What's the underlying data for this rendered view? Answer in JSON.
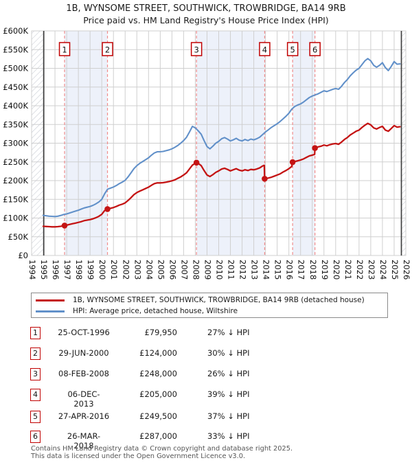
{
  "legend": {
    "items": [
      {
        "label": "1B, WYNSOME STREET, SOUTHWICK, TROWBRIDGE, BA14 9RB (detached house)",
        "color": "#c41414"
      },
      {
        "label": "HPI: Average price, detached house, Wiltshire",
        "color": "#6190c9"
      }
    ]
  },
  "sales": {
    "rows": [
      {
        "num": "1",
        "date": "25-OCT-1996",
        "price": "£79,950",
        "vs_hpi": "27% ↓ HPI"
      },
      {
        "num": "2",
        "date": "29-JUN-2000",
        "price": "£124,000",
        "vs_hpi": "30% ↓ HPI"
      },
      {
        "num": "3",
        "date": "08-FEB-2008",
        "price": "£248,000",
        "vs_hpi": "26% ↓ HPI"
      },
      {
        "num": "4",
        "date": "06-DEC-2013",
        "price": "£205,000",
        "vs_hpi": "39% ↓ HPI"
      },
      {
        "num": "5",
        "date": "27-APR-2016",
        "price": "£249,500",
        "vs_hpi": "37% ↓ HPI"
      },
      {
        "num": "6",
        "date": "26-MAR-2018",
        "price": "£287,000",
        "vs_hpi": "33% ↓ HPI"
      }
    ]
  },
  "footer": {
    "line1": "Contains HM Land Registry data © Crown copyright and database right 2025.",
    "line2": "This data is licensed under the Open Government Licence v3.0."
  },
  "chart_data": {
    "type": "line",
    "title": "1B, WYNSOME STREET, SOUTHWICK, TROWBRIDGE, BA14 9RB",
    "subtitle": "Price paid vs. HM Land Registry's House Price Index (HPI)",
    "units": "GBP thousands",
    "x_axis": {
      "start": 1994,
      "end": 2026,
      "tick_years": [
        1994,
        1995,
        1996,
        1997,
        1998,
        1999,
        2000,
        2001,
        2002,
        2003,
        2004,
        2005,
        2006,
        2007,
        2008,
        2009,
        2010,
        2011,
        2012,
        2013,
        2014,
        2015,
        2016,
        2017,
        2018,
        2019,
        2020,
        2021,
        2022,
        2023,
        2024,
        2025,
        2026
      ]
    },
    "y_axis": {
      "min": 0,
      "max": 600,
      "ticks": [
        [
          0,
          "£0"
        ],
        [
          50,
          "£50K"
        ],
        [
          100,
          "£100K"
        ],
        [
          150,
          "£150K"
        ],
        [
          200,
          "£200K"
        ],
        [
          250,
          "£250K"
        ],
        [
          300,
          "£300K"
        ],
        [
          350,
          "£350K"
        ],
        [
          400,
          "£400K"
        ],
        [
          450,
          "£450K"
        ],
        [
          500,
          "£500K"
        ],
        [
          550,
          "£550K"
        ],
        [
          600,
          "£600K"
        ]
      ]
    },
    "grid": true,
    "legend_position": "below",
    "ownership_bands": [
      [
        1996.82,
        2000.49
      ],
      [
        2008.1,
        2013.93
      ],
      [
        2016.32,
        2018.23
      ]
    ],
    "no_data_hatch": {
      "left": [
        1994.0,
        1995.04
      ],
      "right": [
        2025.62,
        2026.0
      ]
    },
    "markers": [
      {
        "n": "1",
        "year": 1996.82,
        "price_k": 79.95
      },
      {
        "n": "2",
        "year": 2000.49,
        "price_k": 124
      },
      {
        "n": "3",
        "year": 2008.1,
        "price_k": 248
      },
      {
        "n": "4",
        "year": 2013.93,
        "price_k": 205
      },
      {
        "n": "5",
        "year": 2016.32,
        "price_k": 249.5
      },
      {
        "n": "6",
        "year": 2018.23,
        "price_k": 287
      }
    ],
    "colors": {
      "price_line": "#c41414",
      "hpi_line": "#6190c9",
      "sale_vline": "#f08c8c",
      "band_fill": "#edf1fa",
      "grid": "#cfcfcf",
      "marker_box_border": "#c00000",
      "hatch_line": "#c5c9d1",
      "data_edge_line": "#3f3f3f"
    },
    "series": [
      {
        "name": "1B, WYNSOME STREET, SOUTHWICK, TROWBRIDGE, BA14 9RB (detached house)",
        "color": "#c41414",
        "points": [
          [
            1995.0,
            78
          ],
          [
            1995.25,
            77.5
          ],
          [
            1995.5,
            77
          ],
          [
            1995.75,
            76.5
          ],
          [
            1996.0,
            76.5
          ],
          [
            1996.25,
            77
          ],
          [
            1996.5,
            78
          ],
          [
            1996.82,
            79.95
          ],
          [
            1997.0,
            81
          ],
          [
            1997.25,
            83
          ],
          [
            1997.5,
            85
          ],
          [
            1997.75,
            86.5
          ],
          [
            1998.0,
            88.5
          ],
          [
            1998.25,
            90.5
          ],
          [
            1998.5,
            93
          ],
          [
            1998.75,
            94.5
          ],
          [
            1999.0,
            96
          ],
          [
            1999.25,
            98
          ],
          [
            1999.5,
            101
          ],
          [
            1999.75,
            104.5
          ],
          [
            2000.0,
            110
          ],
          [
            2000.25,
            120
          ],
          [
            2000.49,
            124
          ],
          [
            2000.75,
            126
          ],
          [
            2001.0,
            128
          ],
          [
            2001.25,
            131
          ],
          [
            2001.5,
            134.5
          ],
          [
            2001.75,
            137
          ],
          [
            2002.0,
            140.5
          ],
          [
            2002.25,
            147
          ],
          [
            2002.5,
            154.5
          ],
          [
            2002.75,
            162.5
          ],
          [
            2003.0,
            168
          ],
          [
            2003.25,
            172
          ],
          [
            2003.5,
            175.5
          ],
          [
            2003.75,
            179
          ],
          [
            2004.0,
            182.5
          ],
          [
            2004.25,
            187.5
          ],
          [
            2004.5,
            192
          ],
          [
            2004.75,
            194
          ],
          [
            2005.0,
            194
          ],
          [
            2005.25,
            194.5
          ],
          [
            2005.5,
            196
          ],
          [
            2005.75,
            197.5
          ],
          [
            2006.0,
            199.5
          ],
          [
            2006.25,
            202
          ],
          [
            2006.5,
            206
          ],
          [
            2006.75,
            210
          ],
          [
            2007.0,
            215
          ],
          [
            2007.25,
            221
          ],
          [
            2007.5,
            231
          ],
          [
            2007.75,
            241.5
          ],
          [
            2008.1,
            248
          ],
          [
            2008.25,
            246
          ],
          [
            2008.5,
            240
          ],
          [
            2008.75,
            227
          ],
          [
            2009.0,
            215
          ],
          [
            2009.25,
            211
          ],
          [
            2009.5,
            216
          ],
          [
            2009.75,
            222
          ],
          [
            2010.0,
            226
          ],
          [
            2010.25,
            231
          ],
          [
            2010.5,
            233
          ],
          [
            2010.75,
            230
          ],
          [
            2011.0,
            226
          ],
          [
            2011.25,
            229
          ],
          [
            2011.5,
            232
          ],
          [
            2011.75,
            228
          ],
          [
            2012.0,
            226
          ],
          [
            2012.25,
            229
          ],
          [
            2012.5,
            227
          ],
          [
            2012.75,
            230
          ],
          [
            2013.0,
            229
          ],
          [
            2013.25,
            231
          ],
          [
            2013.5,
            234
          ],
          [
            2013.75,
            239
          ],
          [
            2013.9,
            241
          ],
          [
            2013.93,
            205
          ],
          [
            2014.25,
            207
          ],
          [
            2014.5,
            209
          ],
          [
            2014.75,
            212
          ],
          [
            2015.0,
            215
          ],
          [
            2015.25,
            218
          ],
          [
            2015.5,
            223
          ],
          [
            2015.75,
            227
          ],
          [
            2016.0,
            232
          ],
          [
            2016.25,
            238
          ],
          [
            2016.32,
            249.5
          ],
          [
            2016.5,
            251
          ],
          [
            2016.75,
            253
          ],
          [
            2017.0,
            255
          ],
          [
            2017.25,
            258
          ],
          [
            2017.5,
            262
          ],
          [
            2017.75,
            266
          ],
          [
            2018.0,
            268
          ],
          [
            2018.2,
            270
          ],
          [
            2018.23,
            287
          ],
          [
            2018.5,
            290
          ],
          [
            2018.75,
            292
          ],
          [
            2019.0,
            295
          ],
          [
            2019.25,
            293
          ],
          [
            2019.5,
            296
          ],
          [
            2019.75,
            298
          ],
          [
            2020.0,
            299
          ],
          [
            2020.25,
            297
          ],
          [
            2020.5,
            303
          ],
          [
            2020.75,
            310
          ],
          [
            2021.0,
            315
          ],
          [
            2021.25,
            322
          ],
          [
            2021.5,
            327
          ],
          [
            2021.75,
            332
          ],
          [
            2022.0,
            335
          ],
          [
            2022.25,
            342
          ],
          [
            2022.5,
            348
          ],
          [
            2022.75,
            353
          ],
          [
            2023.0,
            349
          ],
          [
            2023.25,
            341
          ],
          [
            2023.5,
            338
          ],
          [
            2023.75,
            342
          ],
          [
            2024.0,
            345
          ],
          [
            2024.25,
            335
          ],
          [
            2024.5,
            332
          ],
          [
            2024.75,
            339
          ],
          [
            2025.0,
            347
          ],
          [
            2025.25,
            343
          ],
          [
            2025.5,
            344
          ]
        ]
      },
      {
        "name": "HPI: Average price, detached house, Wiltshire",
        "color": "#6190c9",
        "points": [
          [
            1995.0,
            107
          ],
          [
            1995.25,
            106
          ],
          [
            1995.5,
            105
          ],
          [
            1995.75,
            104.5
          ],
          [
            1996.0,
            104
          ],
          [
            1996.25,
            105
          ],
          [
            1996.5,
            107
          ],
          [
            1996.75,
            109.5
          ],
          [
            1997.0,
            111
          ],
          [
            1997.25,
            113.5
          ],
          [
            1997.5,
            116
          ],
          [
            1997.75,
            118.5
          ],
          [
            1998.0,
            121
          ],
          [
            1998.25,
            124
          ],
          [
            1998.5,
            127
          ],
          [
            1998.75,
            129
          ],
          [
            1999.0,
            131
          ],
          [
            1999.25,
            134
          ],
          [
            1999.5,
            138
          ],
          [
            1999.75,
            143
          ],
          [
            2000.0,
            150
          ],
          [
            2000.25,
            165
          ],
          [
            2000.5,
            177
          ],
          [
            2000.75,
            180
          ],
          [
            2001.0,
            183
          ],
          [
            2001.25,
            187
          ],
          [
            2001.5,
            192
          ],
          [
            2001.75,
            196
          ],
          [
            2002.0,
            201
          ],
          [
            2002.25,
            210
          ],
          [
            2002.5,
            221
          ],
          [
            2002.75,
            232
          ],
          [
            2003.0,
            240
          ],
          [
            2003.25,
            246
          ],
          [
            2003.5,
            251
          ],
          [
            2003.75,
            256
          ],
          [
            2004.0,
            261
          ],
          [
            2004.25,
            268
          ],
          [
            2004.5,
            274
          ],
          [
            2004.75,
            277
          ],
          [
            2005.0,
            277
          ],
          [
            2005.25,
            278
          ],
          [
            2005.5,
            280
          ],
          [
            2005.75,
            282
          ],
          [
            2006.0,
            285
          ],
          [
            2006.25,
            289
          ],
          [
            2006.5,
            294
          ],
          [
            2006.75,
            300
          ],
          [
            2007.0,
            307
          ],
          [
            2007.25,
            316
          ],
          [
            2007.5,
            330
          ],
          [
            2007.75,
            345
          ],
          [
            2008.0,
            341
          ],
          [
            2008.25,
            333
          ],
          [
            2008.5,
            324
          ],
          [
            2008.75,
            307
          ],
          [
            2009.0,
            291
          ],
          [
            2009.25,
            285
          ],
          [
            2009.5,
            292
          ],
          [
            2009.75,
            300
          ],
          [
            2010.0,
            305
          ],
          [
            2010.25,
            312
          ],
          [
            2010.5,
            315
          ],
          [
            2010.75,
            311
          ],
          [
            2011.0,
            306
          ],
          [
            2011.25,
            309
          ],
          [
            2011.5,
            313
          ],
          [
            2011.75,
            308
          ],
          [
            2012.0,
            306
          ],
          [
            2012.25,
            310
          ],
          [
            2012.5,
            307
          ],
          [
            2012.75,
            311
          ],
          [
            2013.0,
            309
          ],
          [
            2013.25,
            312
          ],
          [
            2013.5,
            316
          ],
          [
            2013.75,
            323
          ],
          [
            2014.0,
            330
          ],
          [
            2014.25,
            336
          ],
          [
            2014.5,
            342
          ],
          [
            2014.75,
            347
          ],
          [
            2015.0,
            352
          ],
          [
            2015.25,
            358
          ],
          [
            2015.5,
            365
          ],
          [
            2015.75,
            372
          ],
          [
            2016.0,
            380
          ],
          [
            2016.25,
            391
          ],
          [
            2016.5,
            398
          ],
          [
            2016.75,
            402
          ],
          [
            2017.0,
            405
          ],
          [
            2017.25,
            410
          ],
          [
            2017.5,
            416
          ],
          [
            2017.75,
            422
          ],
          [
            2018.0,
            426
          ],
          [
            2018.25,
            429
          ],
          [
            2018.5,
            432
          ],
          [
            2018.75,
            436
          ],
          [
            2019.0,
            440
          ],
          [
            2019.25,
            438
          ],
          [
            2019.5,
            441
          ],
          [
            2019.75,
            444
          ],
          [
            2020.0,
            446
          ],
          [
            2020.25,
            444
          ],
          [
            2020.5,
            452
          ],
          [
            2020.75,
            462
          ],
          [
            2021.0,
            470
          ],
          [
            2021.25,
            480
          ],
          [
            2021.5,
            488
          ],
          [
            2021.75,
            495
          ],
          [
            2022.0,
            500
          ],
          [
            2022.25,
            510
          ],
          [
            2022.5,
            520
          ],
          [
            2022.75,
            526
          ],
          [
            2023.0,
            520
          ],
          [
            2023.25,
            508
          ],
          [
            2023.5,
            503
          ],
          [
            2023.75,
            508
          ],
          [
            2024.0,
            515
          ],
          [
            2024.25,
            502
          ],
          [
            2024.5,
            494
          ],
          [
            2024.75,
            505
          ],
          [
            2025.0,
            518
          ],
          [
            2025.25,
            511
          ],
          [
            2025.5,
            512
          ]
        ]
      }
    ]
  }
}
